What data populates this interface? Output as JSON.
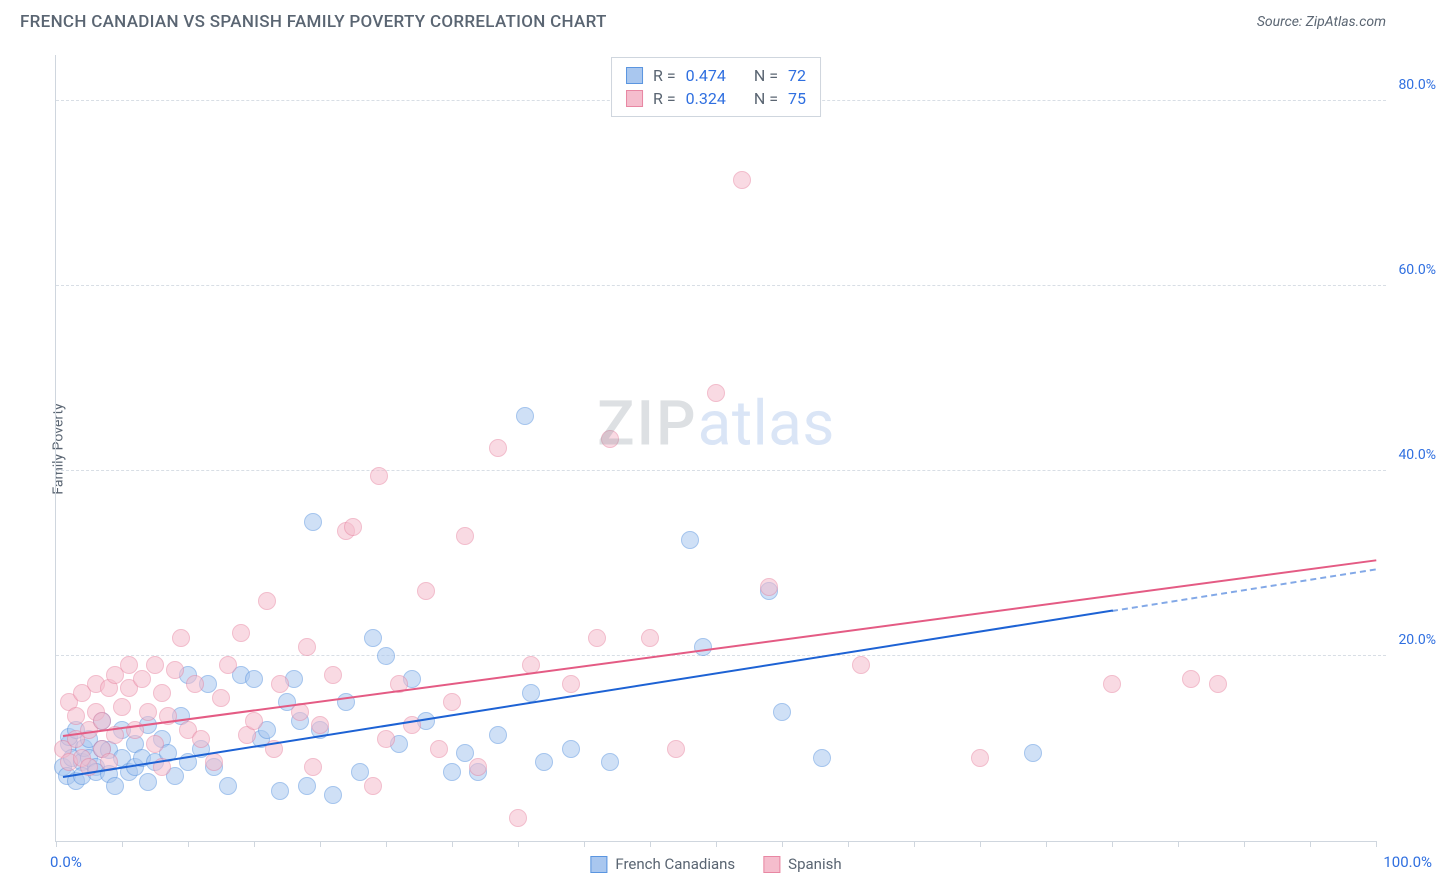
{
  "title": "FRENCH CANADIAN VS SPANISH FAMILY POVERTY CORRELATION CHART",
  "source_prefix": "Source: ",
  "source_name": "ZipAtlas.com",
  "ylabel": "Family Poverty",
  "chart": {
    "type": "scatter",
    "xlim": [
      0,
      100
    ],
    "ylim": [
      0,
      85
    ],
    "ytick_values": [
      20,
      40,
      60,
      80
    ],
    "ytick_labels": [
      "20.0%",
      "40.0%",
      "60.0%",
      "80.0%"
    ],
    "xtick_values": [
      0,
      5,
      10,
      15,
      20,
      25,
      30,
      35,
      40,
      45,
      50,
      55,
      60,
      65,
      70,
      75,
      80,
      85,
      90,
      95,
      100
    ],
    "xlim_label_left": "0.0%",
    "xlim_label_right": "100.0%",
    "axis_color": "#cfd6de",
    "grid_color": "#d8dee5",
    "background_color": "#ffffff",
    "tick_label_color": "#2f6fe0",
    "point_radius": 9,
    "point_opacity": 0.55,
    "series": [
      {
        "id": "french_canadians",
        "label": "French Canadians",
        "fill": "#a9c7ef",
        "stroke": "#5a95e0",
        "trend_color": "#1d62d4",
        "stats": {
          "r": "0.474",
          "n": "72"
        },
        "trend": {
          "x1": 0.5,
          "y1": 7.0,
          "x2": 80,
          "y2": 25,
          "ext_x2": 100,
          "ext_y2": 29.5
        },
        "points": [
          [
            0.5,
            8
          ],
          [
            0.8,
            7
          ],
          [
            1,
            10.5
          ],
          [
            1,
            11.2
          ],
          [
            1.2,
            9
          ],
          [
            1.5,
            6.5
          ],
          [
            1.5,
            12
          ],
          [
            2,
            8.5
          ],
          [
            2,
            7
          ],
          [
            2.1,
            10.1
          ],
          [
            2.5,
            11
          ],
          [
            2.5,
            9
          ],
          [
            3,
            8
          ],
          [
            3,
            7.5
          ],
          [
            3.5,
            10
          ],
          [
            3.5,
            13
          ],
          [
            4,
            7.2
          ],
          [
            4,
            9.8
          ],
          [
            4.5,
            6
          ],
          [
            5,
            9
          ],
          [
            5,
            12
          ],
          [
            5.5,
            7.5
          ],
          [
            6,
            10.5
          ],
          [
            6,
            8
          ],
          [
            6.5,
            9
          ],
          [
            7,
            12.5
          ],
          [
            7,
            6.4
          ],
          [
            7.5,
            8.5
          ],
          [
            8,
            11
          ],
          [
            8.5,
            9.5
          ],
          [
            9,
            7
          ],
          [
            9.5,
            13.5
          ],
          [
            10,
            18
          ],
          [
            10,
            8.5
          ],
          [
            11,
            10
          ],
          [
            11.5,
            17
          ],
          [
            12,
            8
          ],
          [
            13,
            6
          ],
          [
            14,
            18
          ],
          [
            15,
            17.5
          ],
          [
            15.5,
            11
          ],
          [
            16,
            12
          ],
          [
            17,
            5.4
          ],
          [
            17.5,
            15
          ],
          [
            18,
            17.5
          ],
          [
            18.5,
            13
          ],
          [
            19,
            6
          ],
          [
            19.5,
            34.5
          ],
          [
            20,
            12
          ],
          [
            21,
            5
          ],
          [
            22,
            15
          ],
          [
            23,
            7.5
          ],
          [
            24,
            22
          ],
          [
            25,
            20
          ],
          [
            26,
            10.5
          ],
          [
            27,
            17.5
          ],
          [
            28,
            13
          ],
          [
            30,
            7.5
          ],
          [
            31,
            9.5
          ],
          [
            32,
            7.5
          ],
          [
            33.5,
            11.5
          ],
          [
            35.5,
            46
          ],
          [
            36,
            16
          ],
          [
            37,
            8.5
          ],
          [
            39,
            10
          ],
          [
            42,
            8.5
          ],
          [
            48,
            32.5
          ],
          [
            49,
            21
          ],
          [
            54,
            27
          ],
          [
            55,
            14
          ],
          [
            58,
            9
          ],
          [
            74,
            9.5
          ]
        ]
      },
      {
        "id": "spanish",
        "label": "Spanish",
        "fill": "#f5bdcd",
        "stroke": "#e887a3",
        "trend_color": "#e45b84",
        "stats": {
          "r": "0.324",
          "n": "75"
        },
        "trend": {
          "x1": 0.5,
          "y1": 11.5,
          "x2": 100,
          "ext_x2": 100,
          "y2": 30.5,
          "ext_y2": 30.5
        },
        "points": [
          [
            0.5,
            10
          ],
          [
            1,
            8.5
          ],
          [
            1,
            15
          ],
          [
            1.5,
            11
          ],
          [
            1.5,
            13.5
          ],
          [
            2,
            9
          ],
          [
            2,
            16
          ],
          [
            2.5,
            12
          ],
          [
            2.5,
            8
          ],
          [
            3,
            14
          ],
          [
            3,
            17
          ],
          [
            3.5,
            10
          ],
          [
            3.5,
            13
          ],
          [
            4,
            16.5
          ],
          [
            4,
            8.5
          ],
          [
            4.5,
            18
          ],
          [
            4.5,
            11.5
          ],
          [
            5,
            14.5
          ],
          [
            5.5,
            16.5
          ],
          [
            5.5,
            19
          ],
          [
            6,
            12
          ],
          [
            6.5,
            17.5
          ],
          [
            7,
            14
          ],
          [
            7.5,
            10.5
          ],
          [
            7.5,
            19
          ],
          [
            8,
            16
          ],
          [
            8,
            8
          ],
          [
            8.5,
            13.5
          ],
          [
            9,
            18.5
          ],
          [
            9.5,
            22
          ],
          [
            10,
            12
          ],
          [
            10.5,
            17
          ],
          [
            11,
            11
          ],
          [
            12,
            8.5
          ],
          [
            12.5,
            15.5
          ],
          [
            13,
            19
          ],
          [
            14,
            22.5
          ],
          [
            14.5,
            11.5
          ],
          [
            15,
            13
          ],
          [
            16,
            26
          ],
          [
            16.5,
            10
          ],
          [
            17,
            17
          ],
          [
            18.5,
            14
          ],
          [
            19,
            21
          ],
          [
            19.5,
            8
          ],
          [
            20,
            12.5
          ],
          [
            21,
            18
          ],
          [
            22,
            33.5
          ],
          [
            22.5,
            34
          ],
          [
            24,
            6
          ],
          [
            24.5,
            39.5
          ],
          [
            25,
            11
          ],
          [
            26,
            17
          ],
          [
            27,
            12.5
          ],
          [
            28,
            27
          ],
          [
            29,
            10
          ],
          [
            30,
            15
          ],
          [
            31,
            33
          ],
          [
            32,
            8
          ],
          [
            33.5,
            42.5
          ],
          [
            35,
            2.5
          ],
          [
            36,
            19
          ],
          [
            39,
            17
          ],
          [
            41,
            22
          ],
          [
            42,
            43.5
          ],
          [
            45,
            22
          ],
          [
            47,
            10
          ],
          [
            50,
            48.5
          ],
          [
            52,
            71.5
          ],
          [
            54,
            27.5
          ],
          [
            61,
            19
          ],
          [
            70,
            9
          ],
          [
            80,
            17
          ],
          [
            86,
            17.5
          ],
          [
            88,
            17
          ]
        ]
      }
    ]
  },
  "stats_legend_labels": {
    "r": "R =",
    "n": "N ="
  },
  "watermark": {
    "zip": "ZIP",
    "atlas": "atlas"
  }
}
